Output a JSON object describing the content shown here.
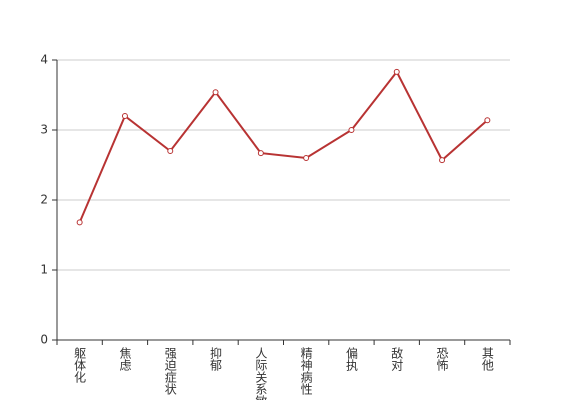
{
  "chart_data": {
    "type": "line",
    "categories": [
      "躯体化",
      "焦虑",
      "强迫症状",
      "抑郁",
      "人际关系敏感",
      "精神病性",
      "偏执",
      "敌对",
      "恐怖",
      "其他"
    ],
    "values": [
      1.68,
      3.2,
      2.7,
      3.54,
      2.67,
      2.6,
      3.0,
      3.83,
      2.57,
      3.14
    ],
    "color": "#b83333",
    "ylim": [
      0,
      4
    ],
    "yticks": [
      0,
      1,
      2,
      3,
      4
    ],
    "grid": true
  }
}
